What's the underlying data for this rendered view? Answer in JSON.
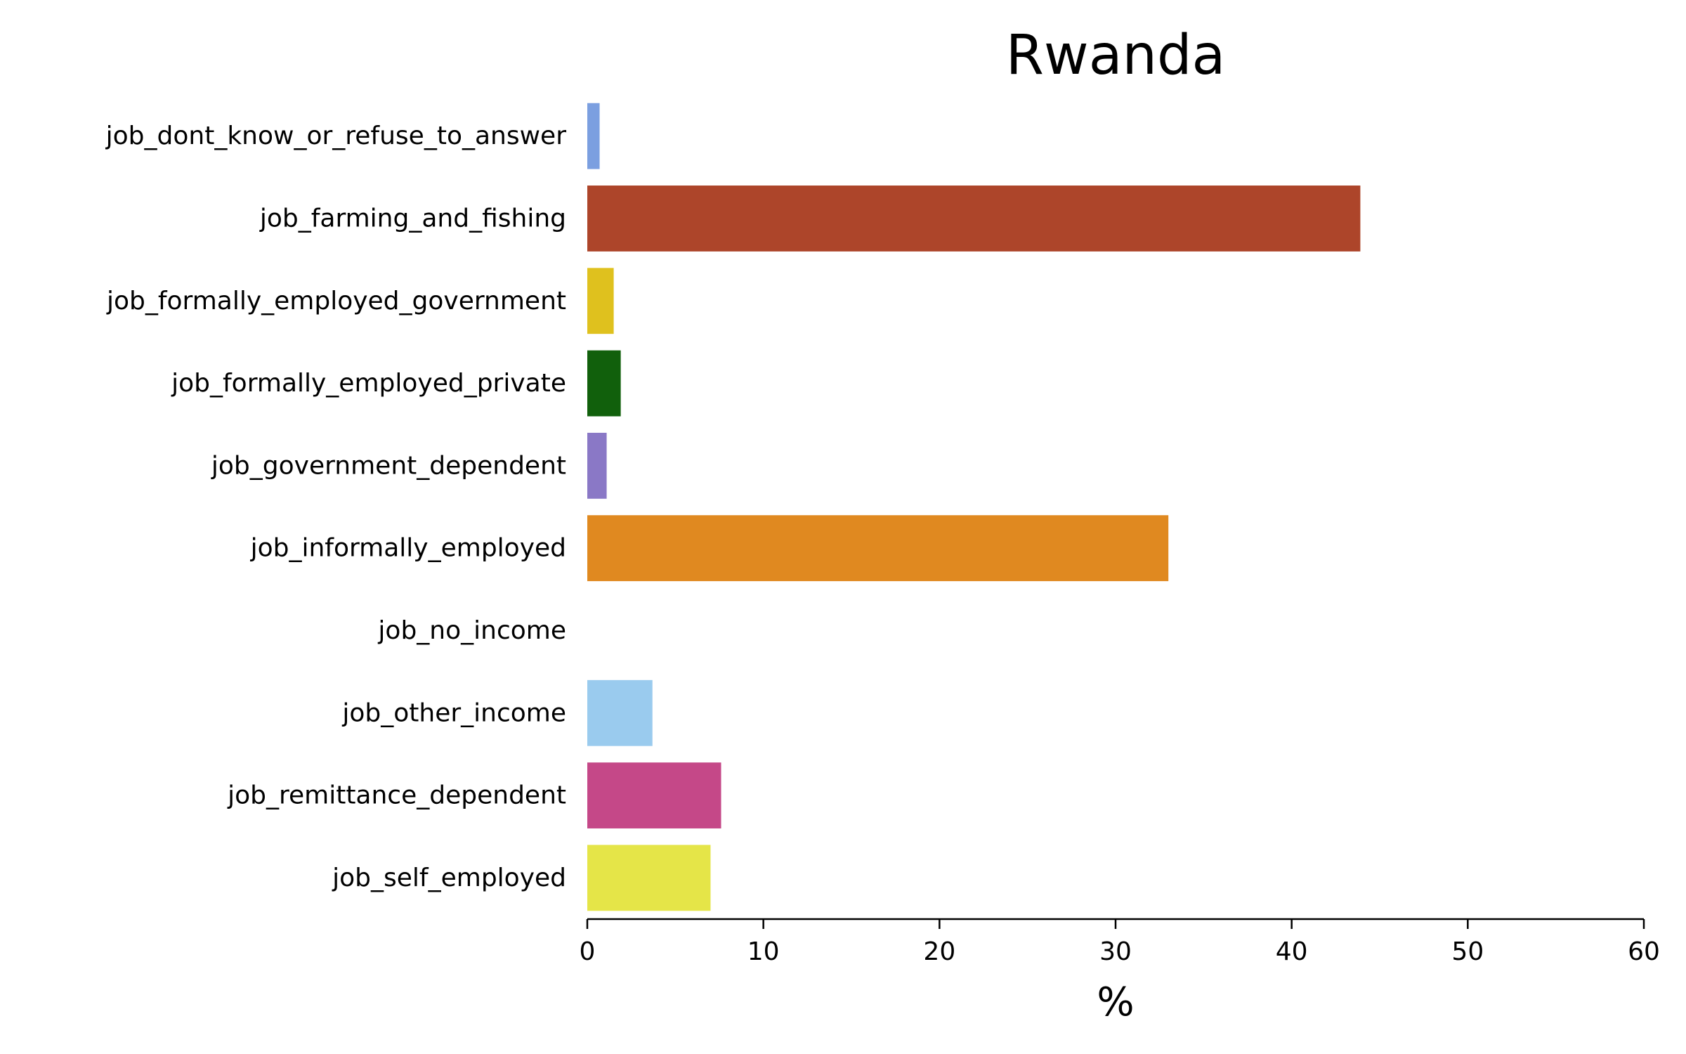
{
  "chart_data": {
    "type": "bar",
    "orientation": "horizontal",
    "title": "Rwanda",
    "xlabel": "%",
    "ylabel": "",
    "xlim": [
      0,
      60
    ],
    "xticks": [
      0,
      10,
      20,
      30,
      40,
      50,
      60
    ],
    "grid": false,
    "categories": [
      "job_dont_know_or_refuse_to_answer",
      "job_farming_and_fishing",
      "job_formally_employed_government",
      "job_formally_employed_private",
      "job_government_dependent",
      "job_informally_employed",
      "job_no_income",
      "job_other_income",
      "job_remittance_dependent",
      "job_self_employed"
    ],
    "values": [
      0.7,
      43.9,
      1.5,
      1.9,
      1.1,
      33.0,
      0.0,
      3.7,
      7.6,
      7.0
    ],
    "colors": [
      "#7b9fe0",
      "#ad452a",
      "#dfc11e",
      "#11600c",
      "#8a78c6",
      "#e08920",
      "#888888",
      "#9acbee",
      "#c54888",
      "#e5e548"
    ]
  }
}
